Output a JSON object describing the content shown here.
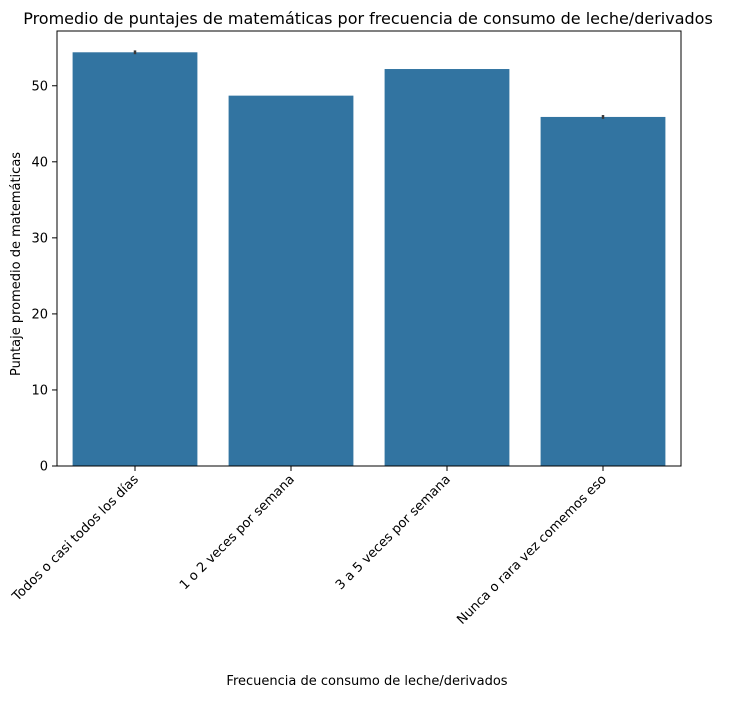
{
  "chart_data": {
    "type": "bar",
    "title": "Promedio de puntajes de matemáticas por frecuencia de consumo de leche/derivados",
    "xlabel": "Frecuencia de consumo de leche/derivados",
    "ylabel": "Puntaje promedio de matemáticas",
    "categories": [
      "Todos o casi todos los días",
      "1 o 2 veces por semana",
      "3 a 5 veces por semana",
      "Nunca o rara vez comemos eso"
    ],
    "values": [
      54.4,
      48.7,
      52.2,
      45.9
    ],
    "error": [
      0.25,
      0.0,
      0.0,
      0.25
    ],
    "ylim": [
      0,
      57.2
    ],
    "yticks": [
      0,
      10,
      20,
      30,
      40,
      50
    ],
    "ytick_labels": [
      "0",
      "10",
      "20",
      "30",
      "40",
      "50"
    ],
    "xtick_rotation": 45,
    "grid": false,
    "colors": {
      "bar": "#3274a1",
      "errorbar": "#3a3a3a",
      "axis": "#000000"
    }
  }
}
